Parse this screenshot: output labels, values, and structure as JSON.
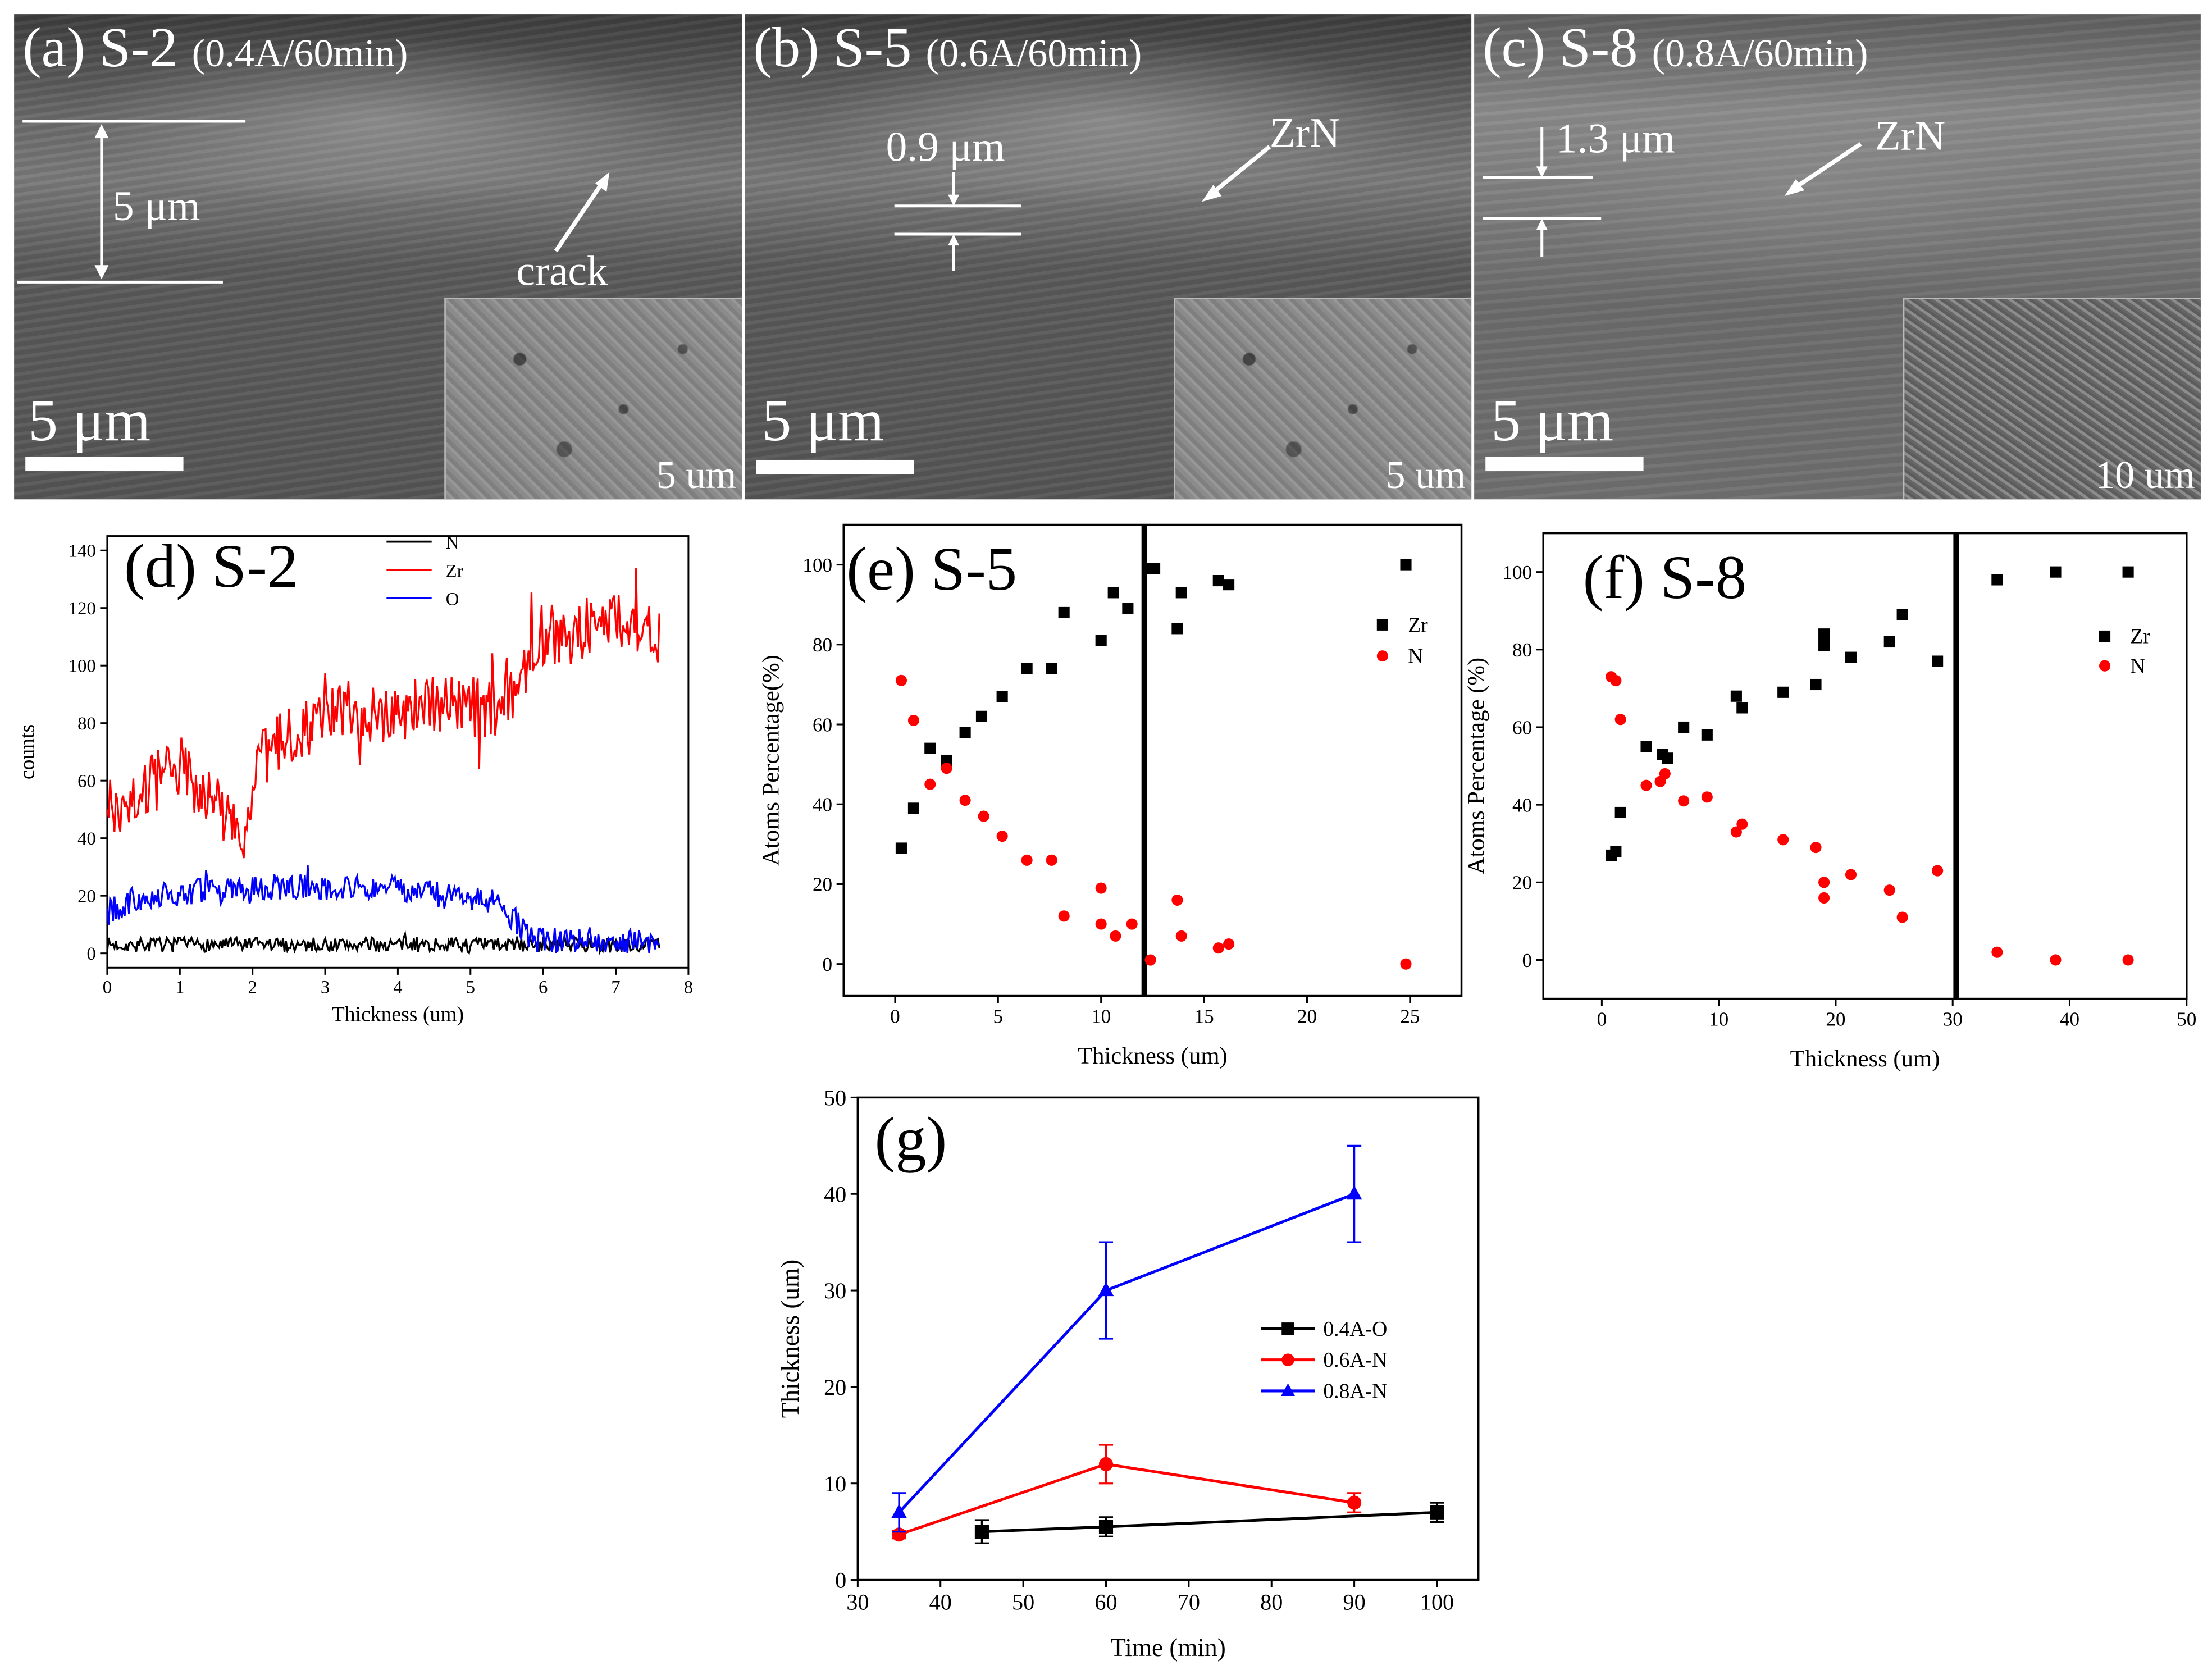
{
  "sem_panels": [
    {
      "panel_label": "(a)",
      "sample": "S-2",
      "condition": "(0.4A/60min)",
      "scale_bar": "5 μm",
      "inset_scale_bar": "5 um",
      "annotations": {
        "thickness": "5 μm",
        "feature": "crack"
      }
    },
    {
      "panel_label": "(b)",
      "sample": "S-5",
      "condition": "(0.6A/60min)",
      "scale_bar": "5 μm",
      "inset_scale_bar": "5 um",
      "annotations": {
        "thickness": "0.9 μm",
        "feature": "ZrN"
      }
    },
    {
      "panel_label": "(c)",
      "sample": "S-8",
      "condition": "(0.8A/60min)",
      "scale_bar": "5 μm",
      "inset_scale_bar": "10 um",
      "annotations": {
        "thickness": "1.3 μm",
        "feature": "ZrN"
      }
    }
  ],
  "colors": {
    "N": "#000000",
    "Zr": "#ff0000",
    "O": "#0000ff",
    "blue_triangle": "#0000ff"
  },
  "chart_data": [
    {
      "id": "d",
      "type": "line",
      "title": "(d) S-2",
      "xlabel": "Thickness (um)",
      "ylabel": "counts",
      "xlim": [
        0,
        8
      ],
      "ylim": [
        -5,
        145
      ],
      "xticks": [
        0,
        1,
        2,
        3,
        4,
        5,
        6,
        7,
        8
      ],
      "yticks": [
        0,
        20,
        40,
        60,
        80,
        100,
        120,
        140
      ],
      "legend_position": "top-center",
      "x_range": [
        0,
        7.6
      ],
      "samples": 380,
      "series": [
        {
          "name": "N",
          "color": "#000000",
          "noise": 2.5,
          "segments": [
            [
              0,
              3
            ],
            [
              7.6,
              3
            ]
          ]
        },
        {
          "name": "Zr",
          "color": "#ff0000",
          "noise": 11,
          "segments": [
            [
              0,
              50
            ],
            [
              0.6,
              58
            ],
            [
              1.0,
              65
            ],
            [
              1.5,
              52
            ],
            [
              1.9,
              40
            ],
            [
              2.1,
              66
            ],
            [
              2.6,
              78
            ],
            [
              3.2,
              84
            ],
            [
              4.0,
              84
            ],
            [
              4.6,
              88
            ],
            [
              5.2,
              84
            ],
            [
              5.6,
              90
            ],
            [
              5.9,
              110
            ],
            [
              6.5,
              112
            ],
            [
              7.0,
              117
            ],
            [
              7.6,
              108
            ]
          ]
        },
        {
          "name": "O",
          "color": "#0000ff",
          "noise": 4.5,
          "segments": [
            [
              0,
              14
            ],
            [
              0.4,
              19
            ],
            [
              1.0,
              21
            ],
            [
              2.2,
              23
            ],
            [
              3.8,
              23
            ],
            [
              5.3,
              18
            ],
            [
              5.6,
              12
            ],
            [
              5.8,
              5
            ],
            [
              7.6,
              4
            ]
          ]
        }
      ]
    },
    {
      "id": "e",
      "type": "scatter",
      "title": "(e) S-5",
      "xlabel": "Thickness (um)",
      "ylabel": "Atoms Percentage(%)",
      "xlim": [
        -2.5,
        27.5
      ],
      "ylim": [
        -8,
        110
      ],
      "xticks": [
        0,
        5,
        10,
        15,
        20,
        25
      ],
      "yticks": [
        0,
        20,
        40,
        60,
        80,
        100
      ],
      "vline": 12.1,
      "legend_position": "right",
      "series": [
        {
          "name": "Zr",
          "marker": "square",
          "color": "#000000",
          "x": [
            0.3,
            0.9,
            1.7,
            2.5,
            3.4,
            4.2,
            5.2,
            6.4,
            7.6,
            8.2,
            10.0,
            10.6,
            11.3,
            12.3,
            12.6,
            13.7,
            13.9,
            15.7,
            16.2,
            24.8
          ],
          "y": [
            29,
            39,
            54,
            51,
            58,
            62,
            67,
            74,
            74,
            88,
            81,
            93,
            89,
            99,
            99,
            84,
            93,
            96,
            95,
            100
          ]
        },
        {
          "name": "N",
          "marker": "circle",
          "color": "#ff0000",
          "x": [
            0.3,
            0.9,
            1.7,
            2.5,
            3.4,
            4.3,
            5.2,
            6.4,
            7.6,
            8.2,
            10.0,
            10.0,
            10.7,
            11.5,
            12.4,
            13.7,
            13.9,
            15.7,
            16.2,
            24.8
          ],
          "y": [
            71,
            61,
            45,
            49,
            41,
            37,
            32,
            26,
            26,
            12,
            19,
            10,
            7,
            10,
            1,
            16,
            7,
            4,
            5,
            0
          ]
        }
      ]
    },
    {
      "id": "f",
      "type": "scatter",
      "title": "(f) S-8",
      "xlabel": "Thickness (um)",
      "ylabel": "Atoms Percentage (%)",
      "xlim": [
        -5,
        50
      ],
      "ylim": [
        -10,
        110
      ],
      "xticks": [
        0,
        10,
        20,
        30,
        40,
        50
      ],
      "yticks": [
        0,
        20,
        40,
        60,
        80,
        100
      ],
      "vline": 30.3,
      "legend_position": "right",
      "series": [
        {
          "name": "Zr",
          "marker": "square",
          "color": "#000000",
          "x": [
            0.8,
            1.2,
            1.6,
            3.8,
            5.2,
            5.6,
            7.0,
            9.0,
            11.5,
            12.0,
            15.5,
            18.3,
            19.0,
            19.0,
            21.3,
            24.6,
            25.7,
            28.7,
            33.8,
            38.8,
            45.0
          ],
          "y": [
            27,
            28,
            38,
            55,
            53,
            52,
            60,
            58,
            68,
            65,
            69,
            71,
            81,
            84,
            78,
            82,
            89,
            77,
            98,
            100,
            100
          ]
        },
        {
          "name": "N",
          "marker": "circle",
          "color": "#ff0000",
          "x": [
            0.8,
            1.2,
            1.6,
            3.8,
            5.0,
            5.4,
            7.0,
            9.0,
            11.5,
            12.0,
            15.5,
            18.3,
            19.0,
            19.0,
            21.3,
            24.6,
            25.7,
            28.7,
            33.8,
            38.8,
            45.0
          ],
          "y": [
            73,
            72,
            62,
            45,
            46,
            48,
            41,
            42,
            33,
            35,
            31,
            29,
            20,
            16,
            22,
            18,
            11,
            23,
            2,
            0,
            0
          ]
        }
      ]
    },
    {
      "id": "g",
      "type": "line",
      "title": "(g)",
      "xlabel": "Time (min)",
      "ylabel": "Thickness (um)",
      "xlim": [
        30,
        105
      ],
      "ylim": [
        0,
        50
      ],
      "xticks": [
        30,
        40,
        50,
        60,
        70,
        80,
        90,
        100
      ],
      "yticks": [
        0,
        10,
        20,
        30,
        40,
        50
      ],
      "legend_position": "center-right",
      "series": [
        {
          "name": "0.4A-O",
          "marker": "square",
          "color": "#000000",
          "x": [
            45,
            60,
            100
          ],
          "y": [
            5.0,
            5.5,
            7.0
          ],
          "err": [
            1.2,
            1.0,
            1.0
          ]
        },
        {
          "name": "0.6A-N",
          "marker": "circle",
          "color": "#ff0000",
          "x": [
            35,
            60,
            90
          ],
          "y": [
            4.7,
            12.0,
            8.0
          ],
          "err": [
            0.4,
            2.0,
            1.0
          ]
        },
        {
          "name": "0.8A-N",
          "marker": "triangle",
          "color": "#0000ff",
          "x": [
            35,
            60,
            90
          ],
          "y": [
            7.0,
            30.0,
            40.0
          ],
          "err": [
            2.0,
            5.0,
            5.0
          ]
        }
      ]
    }
  ]
}
